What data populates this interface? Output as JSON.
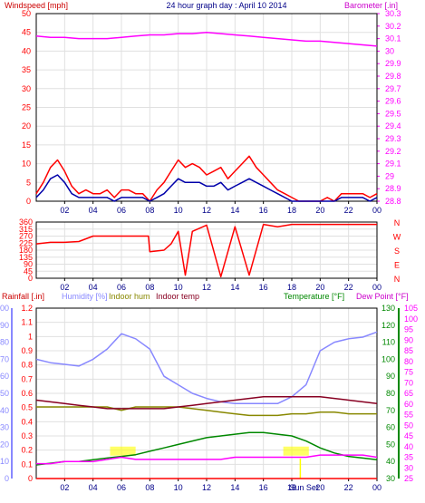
{
  "colors": {
    "windspeed": "#ff0000",
    "windavg": "#0000aa",
    "barometer": "#ff00ff",
    "direction": "#ff0000",
    "rainfall": "#ff0000",
    "humidity": "#8888ff",
    "indoor_hum": "#888800",
    "indoor_temp": "#880022",
    "temperature": "#008800",
    "dewpoint": "#ff00ff",
    "solar": "#ffff00",
    "grid": "#e0e0e0",
    "frame": "#000000",
    "tick_label": "#000088"
  },
  "chart_data": [
    {
      "type": "line",
      "title": "24 hour graph day : April 10 2014",
      "ylabel": "Windspeed [mph]",
      "ylabel_right": "Barometer [.in]",
      "ylim": [
        0,
        50
      ],
      "yticks": [
        "0",
        "5",
        "10",
        "15",
        "20",
        "25",
        "30",
        "35",
        "40",
        "45",
        "50"
      ],
      "ylim_right": [
        28.8,
        30.3
      ],
      "yticks_right": [
        "28.8",
        "28.9",
        "29",
        "29.1",
        "29.2",
        "29.3",
        "29.4",
        "29.5",
        "29.6",
        "29.7",
        "29.8",
        "29.9",
        "30",
        "30.1",
        "30.2",
        "30.3"
      ],
      "xticks": [
        "02",
        "04",
        "06",
        "08",
        "10",
        "12",
        "14",
        "16",
        "18",
        "20",
        "22",
        "00"
      ],
      "series": [
        {
          "name": "Windspeed",
          "axis": "left",
          "x": [
            0,
            0.5,
            1,
            1.5,
            2,
            2.5,
            3,
            3.5,
            4,
            4.5,
            5,
            5.5,
            6,
            6.5,
            7,
            7.5,
            8,
            8.5,
            9,
            9.5,
            10,
            10.5,
            11,
            11.5,
            12,
            12.5,
            13,
            13.5,
            14,
            14.5,
            15,
            15.5,
            16,
            16.5,
            17,
            17.5,
            18,
            18.5,
            19,
            19.5,
            20,
            20.5,
            21,
            21.5,
            22,
            22.5,
            23,
            23.5,
            24
          ],
          "values": [
            2,
            5,
            9,
            11,
            8,
            4,
            2,
            3,
            2,
            2,
            3,
            1,
            3,
            3,
            2,
            2,
            0,
            3,
            5,
            8,
            11,
            9,
            10,
            9,
            7,
            8,
            9,
            6,
            8,
            10,
            12,
            9,
            7,
            5,
            3,
            2,
            1,
            0,
            0,
            0,
            0,
            1,
            0,
            2,
            2,
            2,
            2,
            1,
            2
          ]
        },
        {
          "name": "Wind average",
          "axis": "left",
          "x": [
            0,
            0.5,
            1,
            1.5,
            2,
            2.5,
            3,
            3.5,
            4,
            4.5,
            5,
            5.5,
            6,
            6.5,
            7,
            7.5,
            8,
            8.5,
            9,
            9.5,
            10,
            10.5,
            11,
            11.5,
            12,
            12.5,
            13,
            13.5,
            14,
            14.5,
            15,
            15.5,
            16,
            16.5,
            17,
            17.5,
            18,
            18.5,
            19,
            19.5,
            20,
            20.5,
            21,
            21.5,
            22,
            22.5,
            23,
            23.5,
            24
          ],
          "values": [
            1,
            3,
            6,
            7,
            5,
            2,
            1,
            1,
            1,
            1,
            1,
            0,
            1,
            1,
            1,
            1,
            0,
            1,
            2,
            4,
            6,
            5,
            5,
            5,
            4,
            4,
            5,
            3,
            4,
            5,
            6,
            5,
            4,
            3,
            2,
            1,
            0,
            0,
            0,
            0,
            0,
            0,
            0,
            1,
            1,
            1,
            1,
            0,
            1
          ]
        },
        {
          "name": "Barometer",
          "axis": "right",
          "x": [
            0,
            1,
            2,
            3,
            4,
            5,
            6,
            7,
            8,
            9,
            10,
            11,
            12,
            13,
            14,
            15,
            16,
            17,
            18,
            19,
            20,
            21,
            22,
            23,
            24
          ],
          "values": [
            30.12,
            30.11,
            30.11,
            30.1,
            30.1,
            30.1,
            30.11,
            30.12,
            30.13,
            30.13,
            30.14,
            30.14,
            30.15,
            30.14,
            30.13,
            30.12,
            30.11,
            30.1,
            30.09,
            30.08,
            30.08,
            30.07,
            30.06,
            30.05,
            30.04
          ]
        }
      ]
    },
    {
      "type": "line",
      "ylabel": "Wind direction",
      "ylim": [
        0,
        360
      ],
      "yticks": [
        "0",
        "45",
        "90",
        "135",
        "180",
        "225",
        "270",
        "315",
        "360"
      ],
      "compass": [
        "N",
        "W",
        "S",
        "E",
        "N"
      ],
      "xticks": [
        "02",
        "04",
        "06",
        "08",
        "10",
        "12",
        "14",
        "16",
        "18",
        "20",
        "22",
        "00"
      ],
      "series": [
        {
          "name": "Direction",
          "x": [
            0,
            0.5,
            1,
            2,
            3,
            4,
            5,
            6,
            7,
            7.9,
            8,
            9,
            9.5,
            10,
            10.5,
            11,
            12,
            13,
            14,
            15,
            16,
            17,
            18,
            19,
            20,
            21,
            22,
            23,
            24
          ],
          "values": [
            220,
            225,
            230,
            230,
            235,
            270,
            270,
            270,
            270,
            270,
            170,
            180,
            220,
            300,
            20,
            300,
            340,
            10,
            330,
            20,
            345,
            330,
            345,
            345,
            345,
            345,
            345,
            345,
            345
          ]
        }
      ]
    },
    {
      "type": "line",
      "ylabel": "Rainfall [.in]",
      "ylim": [
        0,
        1.2
      ],
      "yticks": [
        "0",
        "0.1",
        "0.2",
        "0.3",
        "0.4",
        "0.5",
        "0.6",
        "0.7",
        "0.8",
        "0.9",
        "1",
        "1.1",
        "1.2"
      ],
      "humidity_ticks": [
        "0",
        "10",
        "20",
        "30",
        "40",
        "50",
        "60",
        "70",
        "80",
        "90",
        "100"
      ],
      "temp_ticks_green": [
        "30",
        "40",
        "50",
        "60",
        "70",
        "80",
        "90",
        "100",
        "110",
        "120",
        "130"
      ],
      "temp_ticks_magenta": [
        "25",
        "30",
        "35",
        "40",
        "45",
        "50",
        "55",
        "60",
        "65",
        "70",
        "75",
        "80",
        "85",
        "90",
        "95",
        "100",
        "105"
      ],
      "legend": [
        "Rainfall [.in]",
        "Humidity [%]",
        "Indoor hum",
        "Indoor temp",
        "Temperature [°F]",
        "Dew Point [°F]"
      ],
      "marker_label": "Sun Set",
      "xticks": [
        "02",
        "04",
        "06",
        "08",
        "10",
        "12",
        "14",
        "16",
        "18",
        "20",
        "22",
        "00"
      ],
      "series": [
        {
          "name": "Rainfall",
          "axis": "rain",
          "x": [
            0,
            24
          ],
          "values": [
            0,
            0
          ]
        },
        {
          "name": "Humidity",
          "axis": "humidity",
          "x": [
            0,
            1,
            2,
            3,
            4,
            5,
            6,
            7,
            8,
            9,
            10,
            11,
            12,
            13,
            14,
            15,
            16,
            17,
            18,
            19,
            20,
            21,
            22,
            23,
            24
          ],
          "values": [
            70,
            68,
            67,
            66,
            70,
            76,
            85,
            82,
            76,
            60,
            55,
            50,
            47,
            45,
            44,
            44,
            44,
            44,
            48,
            55,
            75,
            80,
            82,
            83,
            86
          ]
        },
        {
          "name": "Indoor hum",
          "axis": "humidity",
          "x": [
            0,
            1,
            2,
            3,
            4,
            5,
            6,
            7,
            8,
            9,
            10,
            11,
            12,
            13,
            14,
            15,
            16,
            17,
            18,
            19,
            20,
            21,
            22,
            23,
            24
          ],
          "values": [
            42,
            42,
            42,
            42,
            42,
            42,
            40,
            42,
            42,
            42,
            42,
            41,
            40,
            39,
            38,
            37,
            37,
            37,
            38,
            38,
            39,
            39,
            38,
            38,
            38
          ]
        },
        {
          "name": "Indoor temp",
          "axis": "temp_green",
          "x": [
            0,
            1,
            2,
            3,
            4,
            5,
            6,
            7,
            8,
            9,
            10,
            11,
            12,
            13,
            14,
            15,
            16,
            17,
            18,
            19,
            20,
            21,
            22,
            23,
            24
          ],
          "values": [
            76,
            75,
            74,
            73,
            72,
            71,
            71,
            71,
            71,
            71,
            72,
            73,
            74,
            75,
            76,
            77,
            78,
            78,
            78,
            78,
            78,
            77,
            76,
            75,
            74
          ]
        },
        {
          "name": "Temperature",
          "axis": "temp_green",
          "x": [
            0,
            1,
            2,
            3,
            4,
            5,
            6,
            7,
            8,
            9,
            10,
            11,
            12,
            13,
            14,
            15,
            16,
            17,
            18,
            19,
            20,
            21,
            22,
            23,
            24
          ],
          "values": [
            38,
            39,
            40,
            40,
            41,
            42,
            43,
            44,
            46,
            48,
            50,
            52,
            54,
            55,
            56,
            57,
            57,
            56,
            55,
            52,
            48,
            45,
            43,
            42,
            41
          ]
        },
        {
          "name": "Dew Point",
          "axis": "temp_magenta",
          "x": [
            0,
            1,
            2,
            3,
            4,
            5,
            6,
            7,
            8,
            9,
            10,
            11,
            12,
            13,
            14,
            15,
            16,
            17,
            18,
            19,
            20,
            21,
            22,
            23,
            24
          ],
          "values": [
            32,
            32,
            33,
            33,
            33,
            34,
            35,
            34,
            34,
            34,
            34,
            34,
            34,
            34,
            35,
            35,
            35,
            35,
            35,
            35,
            36,
            36,
            36,
            36,
            35
          ]
        }
      ]
    }
  ]
}
